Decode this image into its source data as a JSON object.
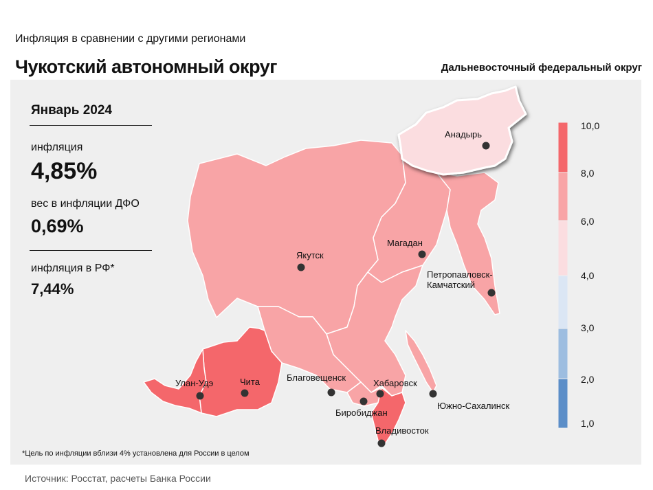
{
  "header": {
    "subtitle": "Инфляция в сравнении с другими регионами",
    "title": "Чукотский автономный округ",
    "district": "Дальневосточный федеральный округ"
  },
  "stats": {
    "period": "Январь 2024",
    "inflation_label": "инфляция",
    "inflation_value": "4,85%",
    "weight_label": "вес в инфляции ДФО",
    "weight_value": "0,69%",
    "rf_label": "инфляция в РФ*",
    "rf_value": "7,44%"
  },
  "map": {
    "cities": [
      {
        "name": "Анадырь"
      },
      {
        "name": "Якутск"
      },
      {
        "name": "Магадан"
      },
      {
        "name": "Петропавловск-"
      },
      {
        "name": "Камчатский"
      },
      {
        "name": "Улан-Удэ"
      },
      {
        "name": "Чита"
      },
      {
        "name": "Благовещенск"
      },
      {
        "name": "Хабаровск"
      },
      {
        "name": "Биробиджан"
      },
      {
        "name": "Южно-Сахалинск"
      },
      {
        "name": "Владивосток"
      }
    ],
    "colors": {
      "band_8_10": "#f4676b",
      "band_6_8": "#f8a4a6",
      "band_4_6": "#fbdde0",
      "band_3_4": "#dbe6f4",
      "band_2_3": "#9dbde0",
      "band_1_2": "#5b8ec8"
    }
  },
  "legend": {
    "ticks": [
      "10,0",
      "8,0",
      "6,0",
      "4,0",
      "3,0",
      "2,0",
      "1,0"
    ]
  },
  "footnote": "*Цель по инфляции вблизи 4% установлена для России в целом",
  "source": "Источник: Росстат, расчеты Банка России"
}
